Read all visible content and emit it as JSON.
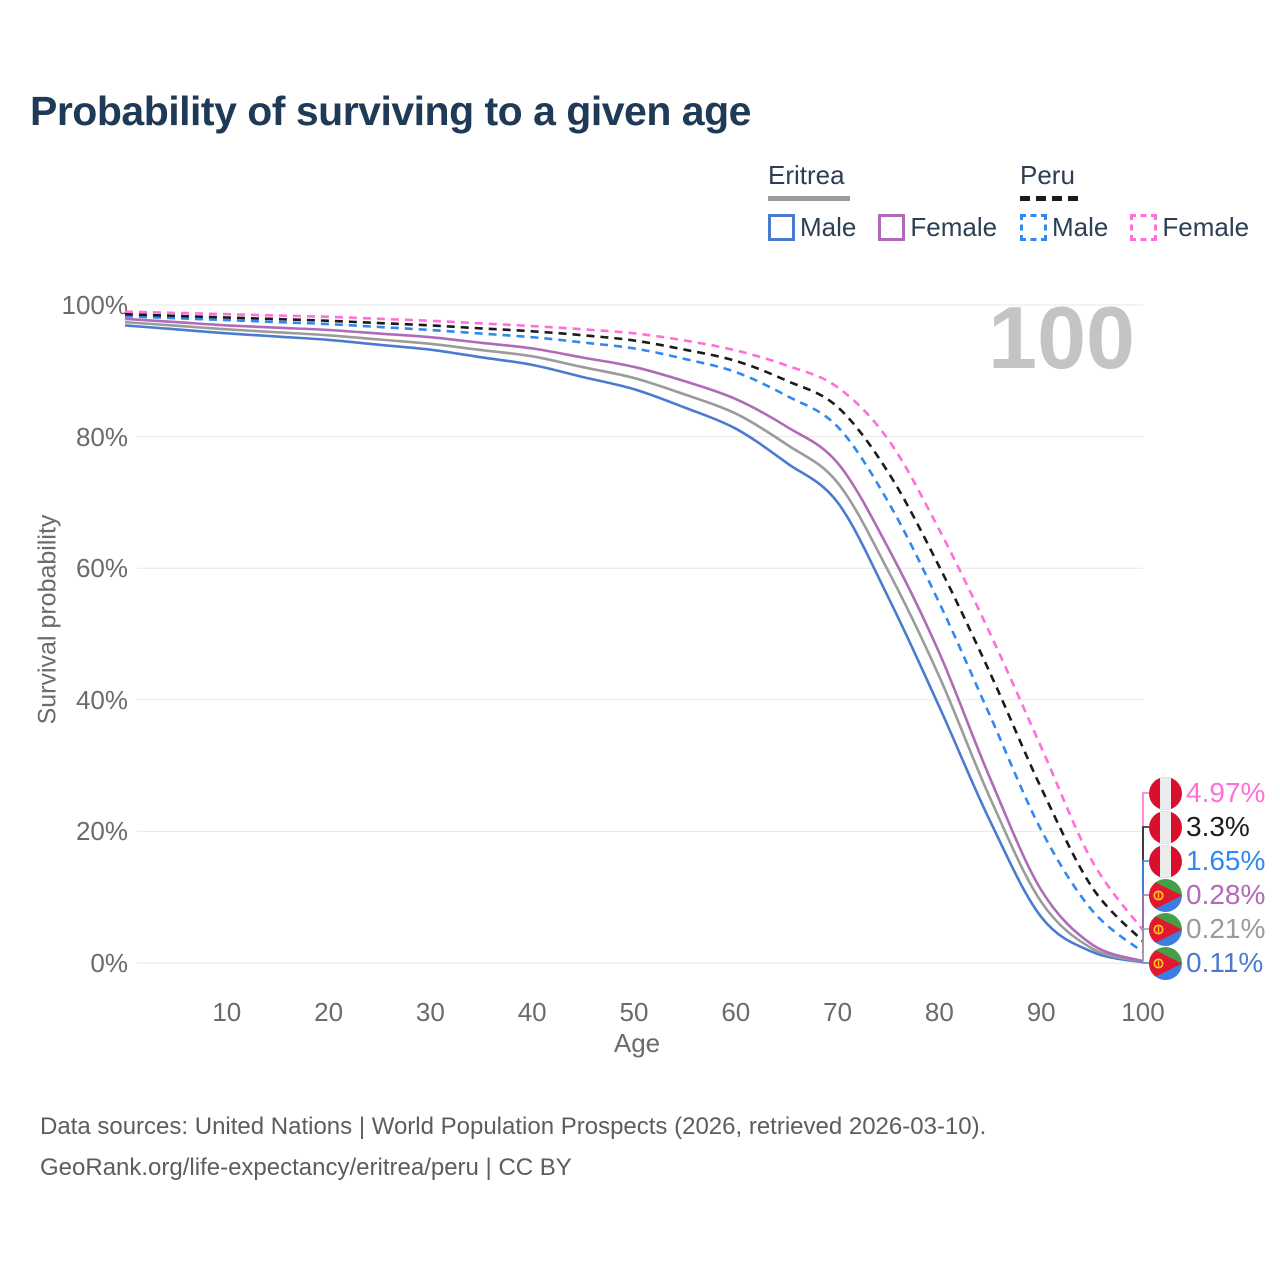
{
  "title": "Probability of surviving to a given age",
  "watermark": {
    "text": "100"
  },
  "legend": {
    "groups": [
      {
        "name": "Eritrea",
        "swatch": {
          "style": "solid",
          "color": "#9b9b9b"
        },
        "items": [
          {
            "label": "Male",
            "color": "#4b7bd0",
            "dashed": false
          },
          {
            "label": "Female",
            "color": "#b06ab8",
            "dashed": false
          }
        ]
      },
      {
        "name": "Peru",
        "swatch": {
          "style": "dashed",
          "color": "#1b1b1b"
        },
        "items": [
          {
            "label": "Male",
            "color": "#2f89f1",
            "dashed": true
          },
          {
            "label": "Female",
            "color": "#ff6edb",
            "dashed": true
          }
        ]
      }
    ]
  },
  "axes": {
    "x": {
      "title": "Age",
      "ticks": [
        10,
        20,
        30,
        40,
        50,
        60,
        70,
        80,
        90,
        100
      ]
    },
    "y": {
      "title": "Survival probability",
      "ticks": [
        {
          "label": "0%",
          "value": 0
        },
        {
          "label": "20%",
          "value": 20
        },
        {
          "label": "40%",
          "value": 40
        },
        {
          "label": "60%",
          "value": 60
        },
        {
          "label": "80%",
          "value": 80
        },
        {
          "label": "100%",
          "value": 100
        }
      ]
    }
  },
  "chart_data": {
    "type": "line",
    "title": "Probability of surviving to a given age",
    "xlabel": "Age",
    "ylabel": "Survival probability",
    "xlim": [
      0,
      100
    ],
    "ylim": [
      0,
      100
    ],
    "grid": "horizontal",
    "legend_position": "top-right",
    "x": [
      0,
      5,
      10,
      15,
      20,
      25,
      30,
      35,
      40,
      45,
      50,
      55,
      60,
      65,
      70,
      75,
      80,
      85,
      90,
      95,
      100
    ],
    "series": [
      {
        "name": "Peru Female",
        "country": "peru",
        "sex": "female",
        "color": "#ff6edb",
        "dashed": true,
        "end_label": "4.97%",
        "values": [
          99.0,
          98.8,
          98.6,
          98.4,
          98.2,
          97.9,
          97.6,
          97.2,
          96.8,
          96.3,
          95.7,
          94.6,
          93.1,
          90.8,
          87.5,
          79.5,
          65.8,
          50.0,
          32.8,
          15.5,
          4.97
        ]
      },
      {
        "name": "Peru (both sexes)",
        "country": "peru",
        "sex": "both",
        "color": "#1b1b1b",
        "dashed": true,
        "end_label": "3.3%",
        "values": [
          98.6,
          98.35,
          98.1,
          97.85,
          97.6,
          97.25,
          96.9,
          96.45,
          96.0,
          95.4,
          94.6,
          93.2,
          91.5,
          88.5,
          84.5,
          74.5,
          60.2,
          44.0,
          26.6,
          11.5,
          3.3
        ]
      },
      {
        "name": "Peru Male",
        "country": "peru",
        "sex": "male",
        "color": "#2f89f1",
        "dashed": true,
        "end_label": "1.65%",
        "values": [
          98.3,
          98.0,
          97.7,
          97.4,
          97.1,
          96.65,
          96.2,
          95.65,
          95.1,
          94.3,
          93.4,
          91.8,
          89.8,
          86.2,
          81.5,
          70.0,
          54.7,
          37.5,
          20.2,
          8.0,
          1.65
        ]
      },
      {
        "name": "Eritrea Female",
        "country": "eritrea",
        "sex": "female",
        "color": "#b06ab8",
        "dashed": false,
        "end_label": "0.28%",
        "values": [
          97.9,
          97.4,
          96.9,
          96.55,
          96.2,
          95.65,
          95.1,
          94.25,
          93.4,
          92.0,
          90.6,
          88.4,
          85.7,
          81.5,
          76.0,
          63.0,
          47.1,
          28.0,
          11.1,
          2.8,
          0.28
        ]
      },
      {
        "name": "Eritrea (both sexes)",
        "country": "eritrea",
        "sex": "both",
        "color": "#9b9b9b",
        "dashed": false,
        "end_label": "0.21%",
        "values": [
          97.4,
          96.85,
          96.3,
          95.85,
          95.4,
          94.75,
          94.1,
          93.15,
          92.2,
          90.55,
          88.9,
          86.4,
          83.5,
          78.8,
          73.0,
          59.5,
          43.5,
          25.0,
          9.3,
          2.2,
          0.21
        ]
      },
      {
        "name": "Eritrea Male",
        "country": "eritrea",
        "sex": "male",
        "color": "#4b7bd0",
        "dashed": false,
        "end_label": "0.11%",
        "values": [
          96.9,
          96.3,
          95.7,
          95.2,
          94.7,
          93.95,
          93.2,
          92.05,
          90.9,
          89.05,
          87.2,
          84.4,
          81.2,
          76.0,
          70.0,
          55.5,
          38.9,
          21.5,
          7.0,
          1.7,
          0.11
        ]
      }
    ]
  },
  "footer": {
    "line1": "Data sources: United Nations | World Population Prospects (2026, retrieved 2026-03-10).",
    "line2": "GeoRank.org/life-expectancy/eritrea/peru | CC BY"
  }
}
